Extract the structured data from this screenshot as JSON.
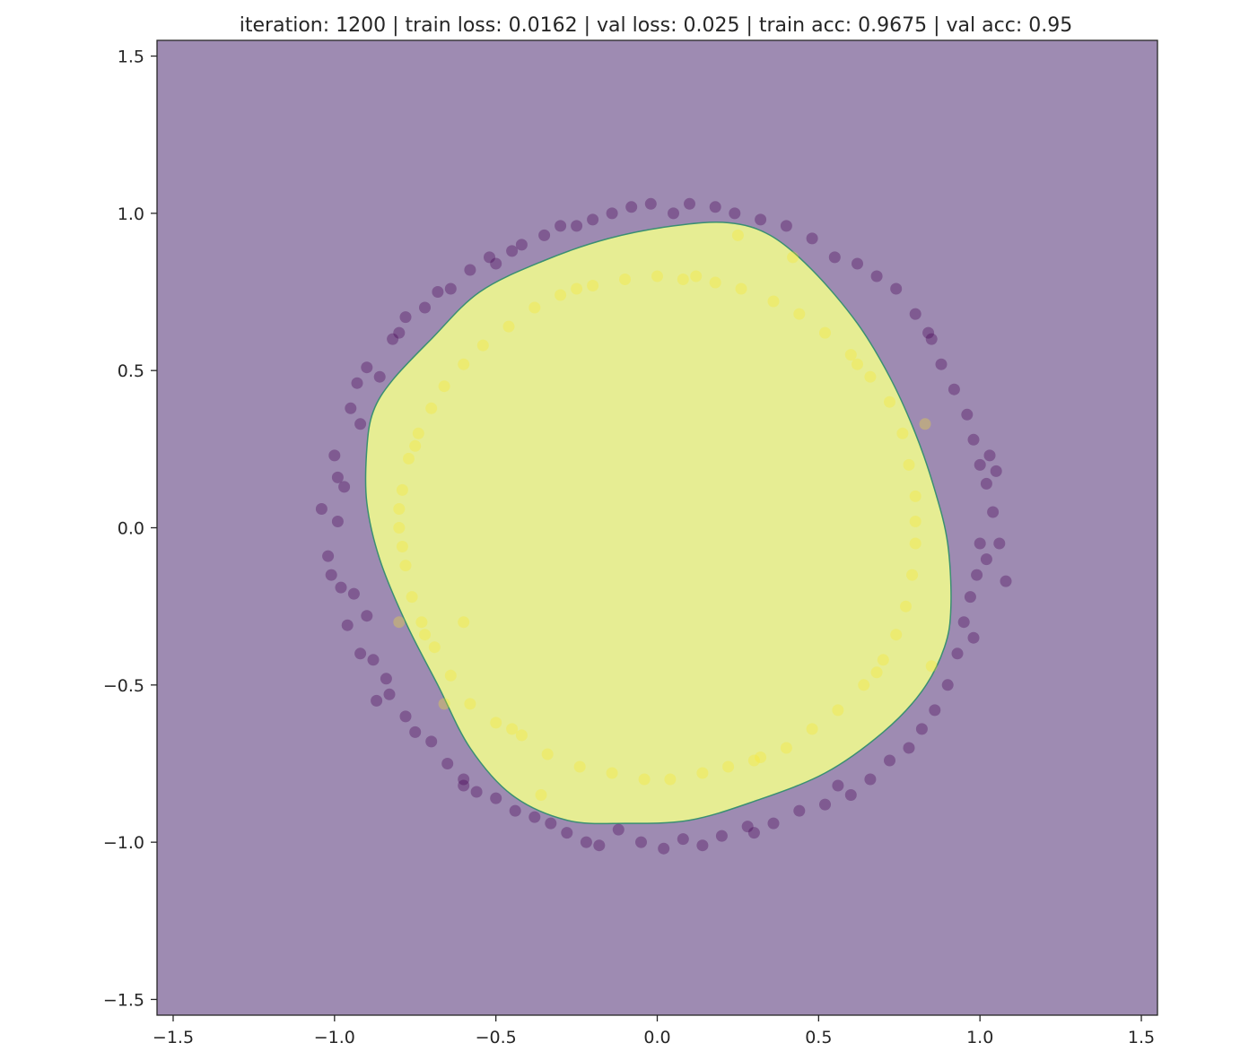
{
  "chart_data": {
    "type": "scatter",
    "title": "iteration: 1200 | train loss: 0.0162 | val loss: 0.025 | train acc: 0.9675 | val acc: 0.95",
    "xlabel": "",
    "ylabel": "",
    "xlim": [
      -1.55,
      1.55
    ],
    "ylim": [
      -1.55,
      1.55
    ],
    "xticks": [
      -1.5,
      -1.0,
      -0.5,
      0.0,
      0.5,
      1.0,
      1.5
    ],
    "yticks": [
      -1.5,
      -1.0,
      -0.5,
      0.0,
      0.5,
      1.0,
      1.5
    ],
    "xtick_labels": [
      "−1.5",
      "−1.0",
      "−0.5",
      "0.0",
      "0.5",
      "1.0",
      "1.5"
    ],
    "ytick_labels": [
      "−1.5",
      "−1.0",
      "−0.5",
      "0.0",
      "0.5",
      "1.0",
      "1.5"
    ],
    "grid": false,
    "colors": {
      "outside_region": "#9e8bb2",
      "inside_region": "#e6ed93",
      "boundary": "#3a8f72",
      "class_0_point": "#440154",
      "class_1_point": "#fde725"
    },
    "decision_boundary": [
      [
        -0.9,
        0.25
      ],
      [
        -0.88,
        0.37
      ],
      [
        -0.82,
        0.47
      ],
      [
        -0.7,
        0.6
      ],
      [
        -0.55,
        0.75
      ],
      [
        -0.35,
        0.85
      ],
      [
        -0.15,
        0.92
      ],
      [
        0.05,
        0.96
      ],
      [
        0.22,
        0.97
      ],
      [
        0.35,
        0.93
      ],
      [
        0.48,
        0.82
      ],
      [
        0.62,
        0.65
      ],
      [
        0.72,
        0.48
      ],
      [
        0.8,
        0.3
      ],
      [
        0.86,
        0.12
      ],
      [
        0.9,
        -0.05
      ],
      [
        0.91,
        -0.25
      ],
      [
        0.89,
        -0.38
      ],
      [
        0.82,
        -0.52
      ],
      [
        0.7,
        -0.65
      ],
      [
        0.52,
        -0.78
      ],
      [
        0.3,
        -0.87
      ],
      [
        0.1,
        -0.93
      ],
      [
        -0.1,
        -0.94
      ],
      [
        -0.28,
        -0.93
      ],
      [
        -0.45,
        -0.85
      ],
      [
        -0.58,
        -0.7
      ],
      [
        -0.68,
        -0.5
      ],
      [
        -0.78,
        -0.3
      ],
      [
        -0.86,
        -0.1
      ],
      [
        -0.9,
        0.08
      ]
    ],
    "series": [
      {
        "class": 0,
        "radius": 1.0,
        "points": [
          [
            -1.04,
            0.06
          ],
          [
            -1.02,
            -0.09
          ],
          [
            -1.0,
            0.23
          ],
          [
            -0.98,
            -0.19
          ],
          [
            -0.97,
            0.13
          ],
          [
            -0.99,
            0.02
          ],
          [
            -0.96,
            -0.31
          ],
          [
            -0.95,
            0.38
          ],
          [
            -0.94,
            -0.21
          ],
          [
            -0.93,
            0.46
          ],
          [
            -0.92,
            -0.4
          ],
          [
            -0.92,
            0.33
          ],
          [
            -0.9,
            -0.28
          ],
          [
            -0.9,
            0.51
          ],
          [
            -0.88,
            -0.42
          ],
          [
            -0.86,
            0.48
          ],
          [
            -0.84,
            -0.48
          ],
          [
            -0.82,
            0.6
          ],
          [
            -0.83,
            -0.53
          ],
          [
            -0.8,
            0.62
          ],
          [
            -0.78,
            -0.6
          ],
          [
            -0.78,
            0.67
          ],
          [
            -0.75,
            -0.65
          ],
          [
            -0.72,
            0.7
          ],
          [
            -0.7,
            -0.68
          ],
          [
            -0.68,
            0.75
          ],
          [
            -0.65,
            -0.75
          ],
          [
            -0.64,
            0.76
          ],
          [
            -0.6,
            -0.8
          ],
          [
            -0.58,
            0.82
          ],
          [
            -0.56,
            -0.84
          ],
          [
            -0.52,
            0.86
          ],
          [
            -0.5,
            -0.86
          ],
          [
            -0.45,
            0.88
          ],
          [
            -0.44,
            -0.9
          ],
          [
            -0.42,
            0.9
          ],
          [
            -0.38,
            -0.92
          ],
          [
            -0.35,
            0.93
          ],
          [
            -0.33,
            -0.94
          ],
          [
            -0.3,
            0.96
          ],
          [
            -0.28,
            -0.97
          ],
          [
            -0.25,
            0.96
          ],
          [
            -0.22,
            -1.0
          ],
          [
            -0.2,
            0.98
          ],
          [
            -0.18,
            -1.01
          ],
          [
            -0.14,
            1.0
          ],
          [
            -0.12,
            -0.96
          ],
          [
            -0.08,
            1.02
          ],
          [
            -0.05,
            -1.0
          ],
          [
            -0.02,
            1.03
          ],
          [
            0.02,
            -1.02
          ],
          [
            0.05,
            1.0
          ],
          [
            0.08,
            -0.99
          ],
          [
            0.1,
            1.03
          ],
          [
            0.14,
            -1.01
          ],
          [
            0.18,
            1.02
          ],
          [
            0.2,
            -0.98
          ],
          [
            0.24,
            1.0
          ],
          [
            0.28,
            -0.95
          ],
          [
            0.32,
            0.98
          ],
          [
            0.36,
            -0.94
          ],
          [
            0.4,
            0.96
          ],
          [
            0.44,
            -0.9
          ],
          [
            0.48,
            0.92
          ],
          [
            0.52,
            -0.88
          ],
          [
            0.55,
            0.86
          ],
          [
            0.6,
            -0.85
          ],
          [
            0.62,
            0.84
          ],
          [
            0.66,
            -0.8
          ],
          [
            0.68,
            0.8
          ],
          [
            0.72,
            -0.74
          ],
          [
            0.74,
            0.76
          ],
          [
            0.78,
            -0.7
          ],
          [
            0.8,
            0.68
          ],
          [
            0.82,
            -0.64
          ],
          [
            0.85,
            0.6
          ],
          [
            0.86,
            -0.58
          ],
          [
            0.88,
            0.52
          ],
          [
            0.9,
            -0.5
          ],
          [
            0.92,
            0.44
          ],
          [
            0.93,
            -0.4
          ],
          [
            0.96,
            0.36
          ],
          [
            0.95,
            -0.3
          ],
          [
            0.98,
            0.28
          ],
          [
            0.97,
            -0.22
          ],
          [
            1.0,
            0.2
          ],
          [
            0.99,
            -0.15
          ],
          [
            1.02,
            0.14
          ],
          [
            1.0,
            -0.05
          ],
          [
            1.04,
            0.05
          ],
          [
            1.02,
            -0.1
          ],
          [
            1.06,
            -0.05
          ],
          [
            1.05,
            0.18
          ],
          [
            1.08,
            -0.17
          ],
          [
            1.03,
            0.23
          ],
          [
            0.98,
            -0.35
          ],
          [
            -1.01,
            -0.15
          ],
          [
            -0.99,
            0.16
          ],
          [
            -0.87,
            -0.55
          ],
          [
            0.84,
            0.62
          ],
          [
            0.56,
            -0.82
          ],
          [
            -0.5,
            0.84
          ],
          [
            0.3,
            -0.97
          ],
          [
            -0.6,
            -0.82
          ]
        ]
      },
      {
        "class": 1,
        "radius": 0.8,
        "points": [
          [
            -0.8,
            0.0
          ],
          [
            -0.79,
            0.12
          ],
          [
            -0.78,
            -0.12
          ],
          [
            -0.77,
            0.22
          ],
          [
            -0.76,
            -0.22
          ],
          [
            -0.74,
            0.3
          ],
          [
            -0.73,
            -0.3
          ],
          [
            -0.7,
            0.38
          ],
          [
            -0.69,
            -0.38
          ],
          [
            -0.66,
            0.45
          ],
          [
            -0.64,
            -0.47
          ],
          [
            -0.6,
            0.52
          ],
          [
            -0.58,
            -0.56
          ],
          [
            -0.54,
            0.58
          ],
          [
            -0.5,
            -0.62
          ],
          [
            -0.46,
            0.64
          ],
          [
            -0.42,
            -0.66
          ],
          [
            -0.38,
            0.7
          ],
          [
            -0.34,
            -0.72
          ],
          [
            -0.3,
            0.74
          ],
          [
            -0.24,
            -0.76
          ],
          [
            -0.2,
            0.77
          ],
          [
            -0.14,
            -0.78
          ],
          [
            -0.1,
            0.79
          ],
          [
            -0.04,
            -0.8
          ],
          [
            0.0,
            0.8
          ],
          [
            0.04,
            -0.8
          ],
          [
            0.08,
            0.79
          ],
          [
            0.14,
            -0.78
          ],
          [
            0.18,
            0.78
          ],
          [
            0.22,
            -0.76
          ],
          [
            0.26,
            0.76
          ],
          [
            0.32,
            -0.73
          ],
          [
            0.36,
            0.72
          ],
          [
            0.4,
            -0.7
          ],
          [
            0.44,
            0.68
          ],
          [
            0.48,
            -0.64
          ],
          [
            0.52,
            0.62
          ],
          [
            0.56,
            -0.58
          ],
          [
            0.6,
            0.55
          ],
          [
            0.64,
            -0.5
          ],
          [
            0.66,
            0.48
          ],
          [
            0.7,
            -0.42
          ],
          [
            0.72,
            0.4
          ],
          [
            0.74,
            -0.34
          ],
          [
            0.76,
            0.3
          ],
          [
            0.77,
            -0.25
          ],
          [
            0.78,
            0.2
          ],
          [
            0.79,
            -0.15
          ],
          [
            0.8,
            0.1
          ],
          [
            0.8,
            -0.05
          ],
          [
            0.8,
            0.02
          ],
          [
            -0.8,
            0.06
          ],
          [
            -0.79,
            -0.06
          ],
          [
            -0.75,
            0.26
          ],
          [
            -0.72,
            -0.34
          ],
          [
            0.62,
            0.52
          ],
          [
            0.68,
            -0.46
          ],
          [
            -0.45,
            -0.64
          ],
          [
            -0.25,
            0.76
          ],
          [
            0.3,
            -0.74
          ],
          [
            0.12,
            0.8
          ],
          [
            -0.6,
            -0.3
          ],
          [
            0.83,
            0.33
          ],
          [
            0.25,
            0.93
          ],
          [
            0.42,
            0.86
          ],
          [
            0.85,
            -0.44
          ],
          [
            -0.36,
            -0.85
          ],
          [
            -0.66,
            -0.56
          ],
          [
            -0.8,
            -0.3
          ]
        ]
      }
    ]
  }
}
